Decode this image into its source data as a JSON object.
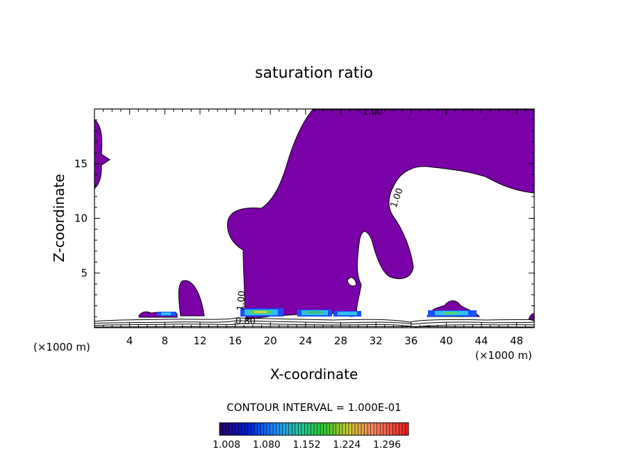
{
  "chart_data": {
    "type": "contour",
    "title": "saturation ratio",
    "xlabel": "X-coordinate",
    "ylabel": "Z-coordinate",
    "x_unit_left": "(×1000 m)",
    "x_unit_right": "(×1000 m)",
    "xlim": [
      0,
      50
    ],
    "ylim": [
      0,
      20
    ],
    "xticks": [
      "4",
      "8",
      "12",
      "16",
      "20",
      "24",
      "28",
      "32",
      "36",
      "40",
      "44",
      "48"
    ],
    "yticks": [
      "5",
      "10",
      "15"
    ],
    "contour_labels": [
      {
        "text": "1.00",
        "x": 31,
        "z": 19.6
      },
      {
        "text": "1.00",
        "x": 34.2,
        "z": 12.2
      },
      {
        "text": "1.00",
        "x": 16.2,
        "z": 2.7
      },
      {
        "text": "0.80",
        "x": 17.4,
        "z": 0.6
      }
    ],
    "contour_interval_text": "CONTOUR INTERVAL = 1.000E-01",
    "colorbar_ticks": [
      "1.008",
      "1.080",
      "1.152",
      "1.224",
      "1.296"
    ],
    "fill_color": "#7a00a8"
  }
}
